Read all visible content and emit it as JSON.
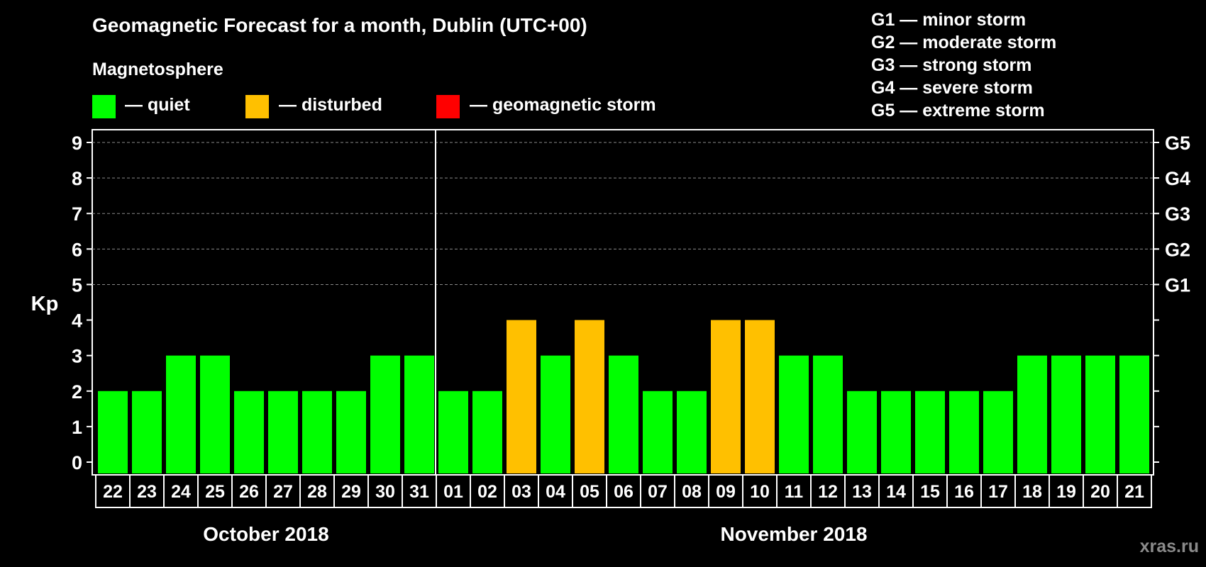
{
  "title": "Geomagnetic Forecast for a month, Dublin (UTC+00)",
  "subtitle": "Magnetosphere",
  "legend": [
    {
      "label": "— quiet",
      "color": "#00ff00"
    },
    {
      "label": "— disturbed",
      "color": "#ffc000"
    },
    {
      "label": "— geomagnetic storm",
      "color": "#ff0000"
    }
  ],
  "storm_scale": [
    "G1 — minor storm",
    "G2 — moderate storm",
    "G3 — strong storm",
    "G4 — severe storm",
    "G5 — extreme storm"
  ],
  "watermark": "xras.ru",
  "chart_data": {
    "type": "bar",
    "title": "Geomagnetic Forecast for a month, Dublin (UTC+00)",
    "ylabel": "Kp",
    "ylim": [
      0,
      9
    ],
    "yticks": [
      0,
      1,
      2,
      3,
      4,
      5,
      6,
      7,
      8,
      9
    ],
    "right_ticks": [
      {
        "value": 5,
        "label": "G1"
      },
      {
        "value": 6,
        "label": "G2"
      },
      {
        "value": 7,
        "label": "G3"
      },
      {
        "value": 8,
        "label": "G4"
      },
      {
        "value": 9,
        "label": "G5"
      }
    ],
    "categories": [
      "22",
      "23",
      "24",
      "25",
      "26",
      "27",
      "28",
      "29",
      "30",
      "31",
      "01",
      "02",
      "03",
      "04",
      "05",
      "06",
      "07",
      "08",
      "09",
      "10",
      "11",
      "12",
      "13",
      "14",
      "15",
      "16",
      "17",
      "18",
      "19",
      "20",
      "21"
    ],
    "values": [
      2,
      2,
      3,
      3,
      2,
      2,
      2,
      2,
      3,
      3,
      2,
      2,
      4,
      3,
      4,
      3,
      2,
      2,
      4,
      4,
      3,
      3,
      2,
      2,
      2,
      2,
      2,
      3,
      3,
      3,
      3
    ],
    "status": [
      "quiet",
      "quiet",
      "quiet",
      "quiet",
      "quiet",
      "quiet",
      "quiet",
      "quiet",
      "quiet",
      "quiet",
      "quiet",
      "quiet",
      "disturbed",
      "quiet",
      "disturbed",
      "quiet",
      "quiet",
      "quiet",
      "disturbed",
      "disturbed",
      "quiet",
      "quiet",
      "quiet",
      "quiet",
      "quiet",
      "quiet",
      "quiet",
      "quiet",
      "quiet",
      "quiet",
      "quiet"
    ],
    "status_colors": {
      "quiet": "#00ff00",
      "disturbed": "#ffc000",
      "storm": "#ff0000"
    },
    "months": [
      {
        "label": "October 2018",
        "first": 0,
        "last": 9
      },
      {
        "label": "November 2018",
        "first": 10,
        "last": 30
      }
    ],
    "grid": true
  }
}
